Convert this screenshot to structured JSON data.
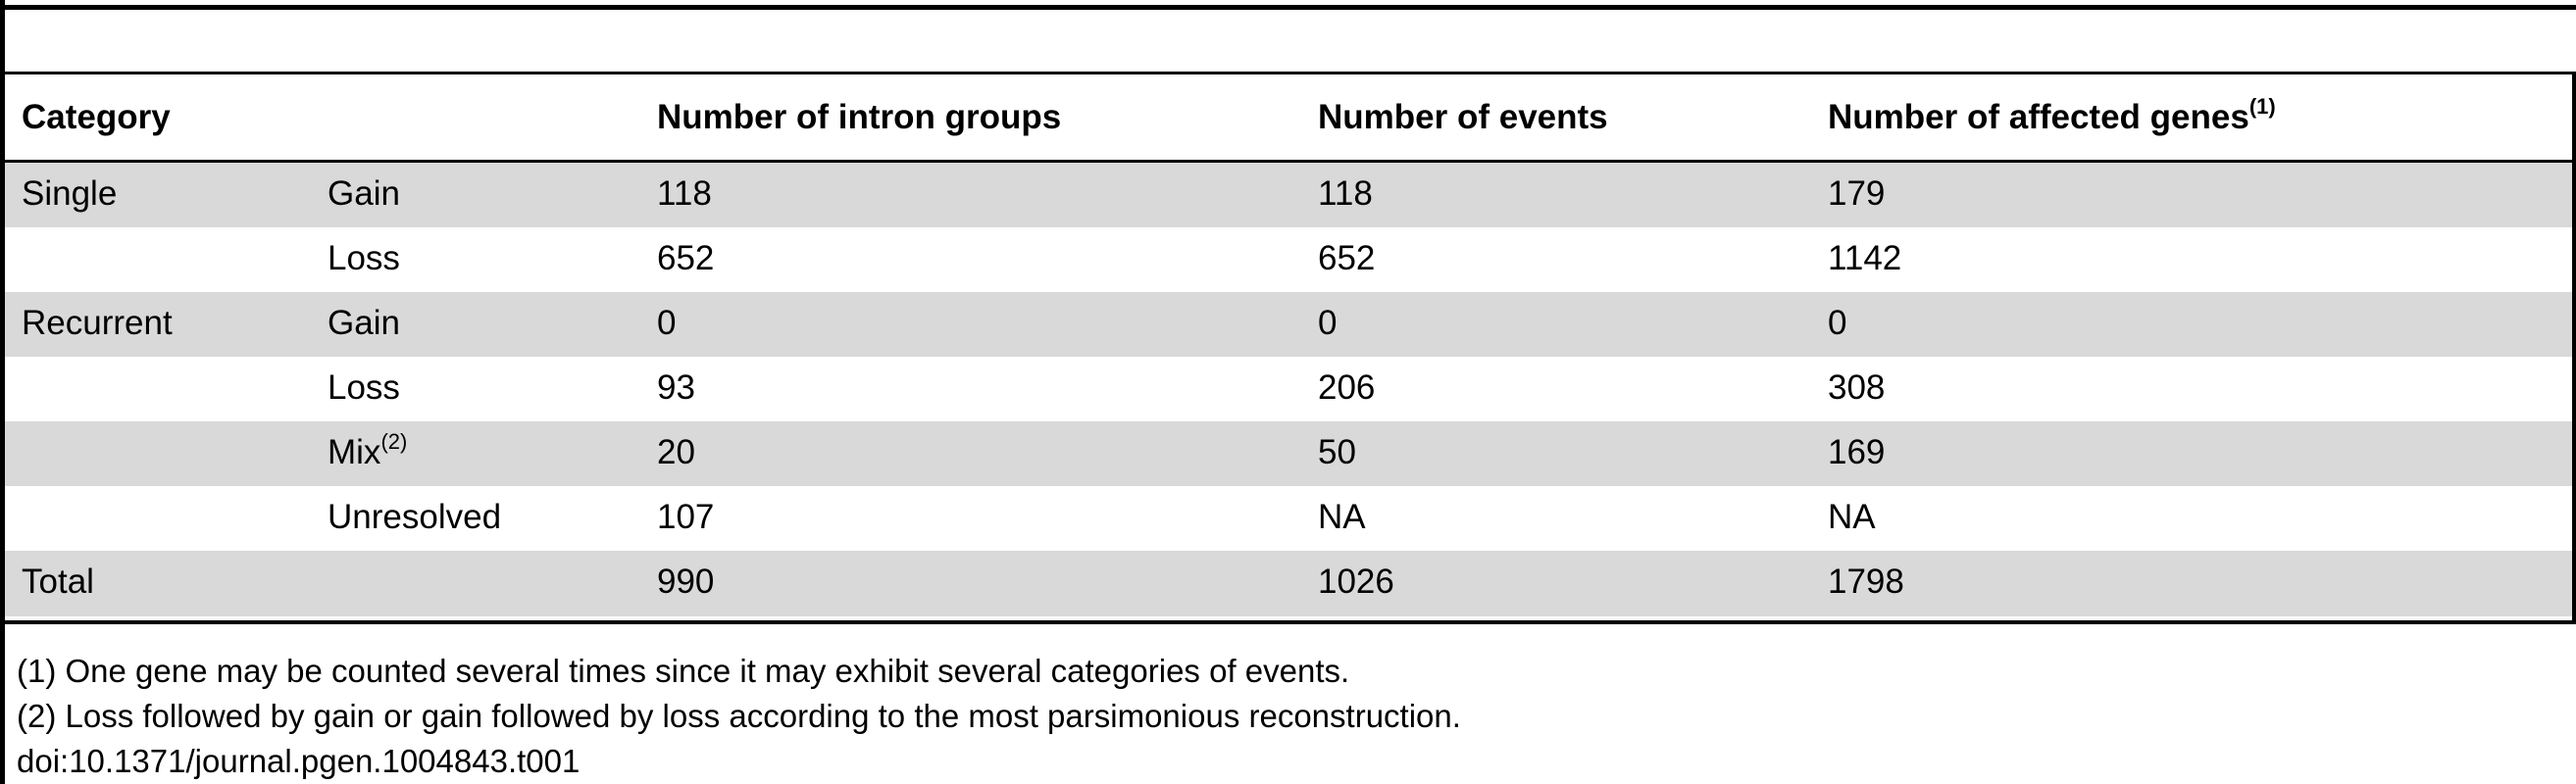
{
  "table": {
    "headers": {
      "category": "Category",
      "intron_groups": "Number of intron groups",
      "events": "Number of events",
      "affected_genes": "Number of affected genes",
      "affected_genes_note": "(1)"
    },
    "rows": [
      {
        "category": "Single",
        "type": "Gain",
        "type_note": "",
        "intron_groups": "118",
        "events": "118",
        "affected_genes": "179"
      },
      {
        "category": "",
        "type": "Loss",
        "type_note": "",
        "intron_groups": "652",
        "events": "652",
        "affected_genes": "1142"
      },
      {
        "category": "Recurrent",
        "type": "Gain",
        "type_note": "",
        "intron_groups": "0",
        "events": "0",
        "affected_genes": "0"
      },
      {
        "category": "",
        "type": "Loss",
        "type_note": "",
        "intron_groups": "93",
        "events": "206",
        "affected_genes": "308"
      },
      {
        "category": "",
        "type": "Mix",
        "type_note": "(2)",
        "intron_groups": "20",
        "events": "50",
        "affected_genes": "169"
      },
      {
        "category": "",
        "type": "Unresolved",
        "type_note": "",
        "intron_groups": "107",
        "events": "NA",
        "affected_genes": "NA"
      }
    ],
    "total": {
      "category": "Total",
      "intron_groups": "990",
      "events": "1026",
      "affected_genes": "1798"
    }
  },
  "footnotes": [
    "(1) One gene may be counted several times since it may exhibit several categories of events.",
    "(2) Loss followed by gain or gain followed by loss according to the most parsimonious reconstruction."
  ],
  "doi": "doi:10.1371/journal.pgen.1004843.t001",
  "colors": {
    "shaded_row": "#d9d9d9",
    "rule": "#000000"
  }
}
